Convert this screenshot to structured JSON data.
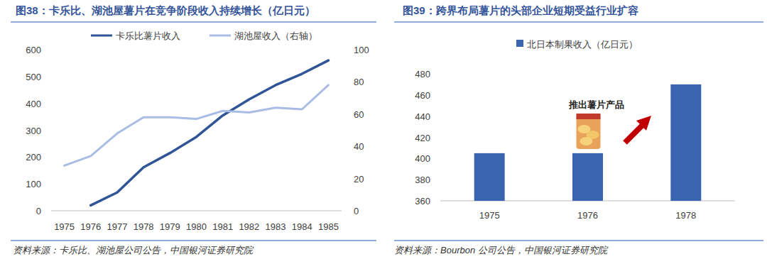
{
  "chart_data": [
    {
      "type": "line",
      "title": "图38：卡乐比、湖池屋薯片在竞争阶段收入持续增长（亿日元）",
      "categories": [
        "1975",
        "1976",
        "1977",
        "1978",
        "1979",
        "1980",
        "1981",
        "1982",
        "1983",
        "1984",
        "1985"
      ],
      "series": [
        {
          "name": "卡乐比薯片收入",
          "color": "#2f5597",
          "values": [
            null,
            20,
            68,
            162,
            215,
            275,
            355,
            415,
            468,
            510,
            560
          ]
        },
        {
          "name": "湖池屋收入（右轴）",
          "color": "#a9bce3",
          "axis": "y2",
          "values": [
            28,
            34,
            48,
            58,
            58,
            57,
            62,
            61,
            64,
            63,
            78
          ]
        }
      ],
      "ylim": [
        0,
        600
      ],
      "yticks": [
        0,
        100,
        200,
        300,
        400,
        500,
        600
      ],
      "y2lim": [
        0,
        100
      ],
      "y2ticks": [
        0,
        20,
        40,
        60,
        80,
        100
      ],
      "grid": false,
      "legend": "top",
      "source": "资料来源：卡乐比、湖池屋公司公告，中国银河证券研究院"
    },
    {
      "type": "bar",
      "title": "图39：跨界布局薯片的头部企业短期受益行业扩容",
      "categories": [
        "1975",
        "1976",
        "1978"
      ],
      "series": [
        {
          "name": "北日本制果收入（亿日元）",
          "color": "#3a64b0",
          "values": [
            405,
            405,
            470
          ]
        }
      ],
      "ylim": [
        360,
        480
      ],
      "yticks": [
        360,
        380,
        400,
        420,
        440,
        460,
        480
      ],
      "grid": false,
      "legend": "top",
      "annotation": "推出薯片产品",
      "source": "资料来源：Bourbon 公司公告，中国银河证券研究院"
    }
  ]
}
